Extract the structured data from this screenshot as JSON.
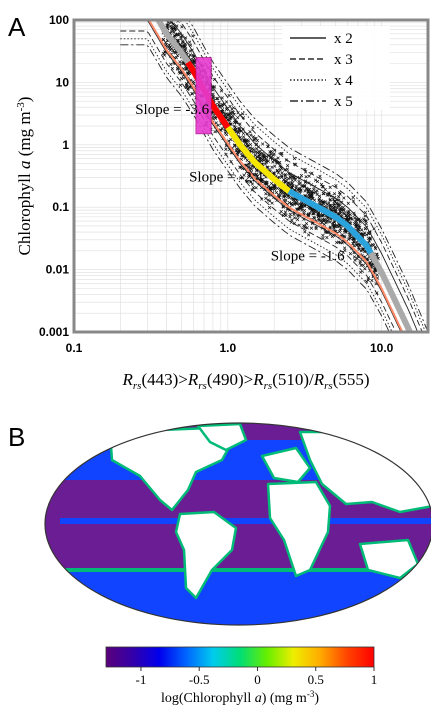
{
  "panel_a": {
    "letter": "A"
  },
  "panel_b": {
    "letter": "B"
  },
  "chart_data": [
    {
      "type": "line",
      "x_scale": "log",
      "y_scale": "log",
      "xlim": [
        0.1,
        20
      ],
      "ylim": [
        0.001,
        100
      ],
      "x_ticks": [
        "0.1",
        "1.0",
        "10.0"
      ],
      "y_ticks": [
        "100",
        "10",
        "1",
        "0.1",
        "0.01",
        "0.001"
      ],
      "ylabel": {
        "prefix": "Chlorophyll ",
        "var": "a",
        "unit": " (mg m",
        "exp": "-3",
        "close": ")"
      },
      "xlabel": {
        "sub": "rs",
        "parts": [
          "(443)>",
          "(490)>",
          "(510)/",
          "(555)"
        ]
      },
      "legend": {
        "position": "top-right",
        "entries": [
          {
            "label": "x 2",
            "dash": "solid"
          },
          {
            "label": "x 3",
            "dash": "dashed"
          },
          {
            "label": "x 4",
            "dash": "dotted"
          },
          {
            "label": "x 5",
            "dash": "dashdot"
          }
        ]
      },
      "annotations": [
        {
          "text": "Slope = -3.6",
          "x": 0.25,
          "y": 3.1
        },
        {
          "text": "Slope = -2.4",
          "x": 0.56,
          "y": 0.26
        },
        {
          "text": "Slope = -1.6",
          "x": 1.9,
          "y": 0.014
        }
      ],
      "central_curve": {
        "x": [
          0.3,
          0.4,
          0.5,
          0.6,
          0.7,
          0.8,
          1.0,
          1.2,
          1.5,
          2.0,
          2.5,
          3.0,
          4.0,
          5.0,
          6.0,
          8.0,
          10.0,
          12.0,
          15.0,
          20.0
        ],
        "y": [
          200,
          60,
          30,
          15,
          7.5,
          4.2,
          1.9,
          1.0,
          0.52,
          0.28,
          0.18,
          0.14,
          0.095,
          0.07,
          0.05,
          0.024,
          0.009,
          0.0035,
          0.0011,
          0.0002
        ],
        "color": "#aaaaaa"
      },
      "segments": [
        {
          "color": "#ff0000",
          "x_range": [
            0.55,
            1.0
          ]
        },
        {
          "color": "#f5e600",
          "x_range": [
            1.0,
            2.5
          ]
        },
        {
          "color": "#2aa3dd",
          "x_range": [
            2.5,
            8.5
          ]
        }
      ],
      "envelope_factors": [
        2,
        3,
        4,
        5
      ],
      "data_box": {
        "x_range": [
          0.62,
          0.78
        ],
        "y_range": [
          1.5,
          25
        ],
        "color": "#e63ad0"
      },
      "series": [
        {
          "name": "x 2",
          "factor": 2
        },
        {
          "name": "x 3",
          "factor": 3
        },
        {
          "name": "x 4",
          "factor": 4
        },
        {
          "name": "x 5",
          "factor": 5
        }
      ],
      "grid": true
    },
    {
      "type": "heatmap",
      "projection": "robinson",
      "colorbar": {
        "range": [
          -1.3,
          1
        ],
        "ticks": [
          "-1",
          "-0.5",
          "0",
          "0.5",
          "1"
        ],
        "colors": [
          "#5a007a",
          "#3300aa",
          "#0000ee",
          "#0066ff",
          "#00ccee",
          "#00dd77",
          "#66ee00",
          "#eeee00",
          "#ffaa00",
          "#ff4400",
          "#ff0000"
        ],
        "label": {
          "text": "log(Chlorophyll ",
          "var": "a",
          "close": ")  (mg m",
          "exp": "-3",
          "end": ")"
        }
      },
      "colors": {
        "ocean": "#6b1e93",
        "land": "#ffffff",
        "coast": "#00bb77",
        "shelf": "#1144ff"
      }
    }
  ]
}
